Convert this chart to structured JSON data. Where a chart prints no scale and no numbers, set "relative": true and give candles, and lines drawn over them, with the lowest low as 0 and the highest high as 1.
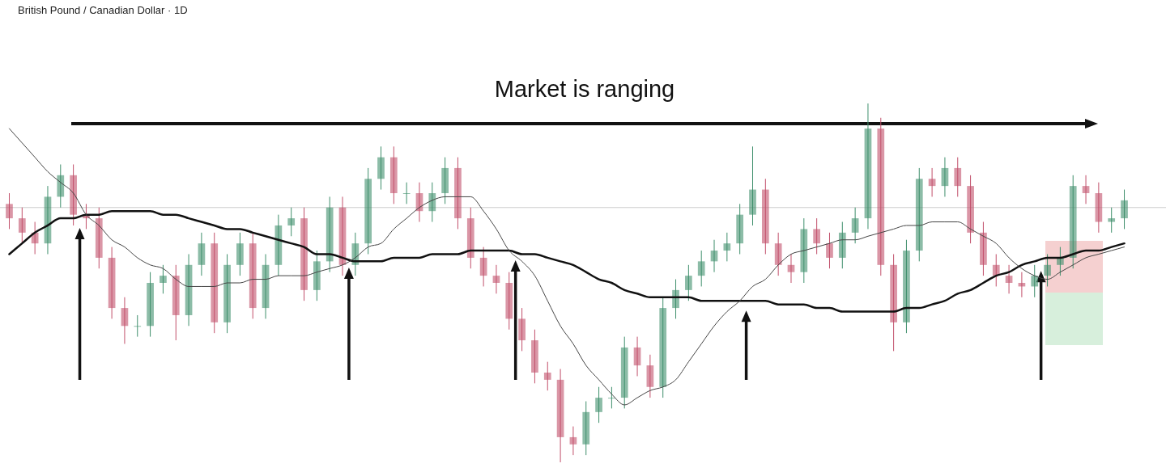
{
  "chart_data": {
    "type": "candlestick",
    "title": "British Pound / Canadian Dollar · 1D",
    "annotations": [
      "Market is ranging"
    ],
    "relative": true,
    "categories": [
      null,
      null,
      null,
      null,
      null,
      null,
      null,
      null,
      null,
      null,
      null,
      null,
      null,
      null,
      null,
      null,
      null,
      null,
      null,
      null,
      null,
      null,
      null,
      null,
      null,
      null,
      null,
      null,
      null,
      null,
      null,
      null,
      null,
      null,
      null,
      null,
      null,
      null,
      null,
      null,
      null,
      null,
      null,
      null,
      null,
      null,
      null,
      null,
      null,
      null,
      null,
      null,
      null,
      null,
      null,
      null,
      null,
      null,
      null,
      null,
      null,
      null,
      null,
      null,
      null,
      null,
      null,
      null,
      null,
      null,
      null,
      null,
      null,
      null,
      null,
      null,
      null,
      null,
      null,
      null,
      null,
      null,
      null,
      null,
      null,
      null,
      null,
      null
    ],
    "ohlc": [
      [
        0.72,
        0.75,
        0.65,
        0.68
      ],
      [
        0.68,
        0.71,
        0.61,
        0.64
      ],
      [
        0.64,
        0.67,
        0.58,
        0.61
      ],
      [
        0.61,
        0.77,
        0.58,
        0.74
      ],
      [
        0.74,
        0.83,
        0.71,
        0.8
      ],
      [
        0.8,
        0.83,
        0.66,
        0.69
      ],
      [
        0.69,
        0.72,
        0.65,
        0.68
      ],
      [
        0.68,
        0.71,
        0.54,
        0.57
      ],
      [
        0.57,
        0.6,
        0.4,
        0.43
      ],
      [
        0.43,
        0.46,
        0.33,
        0.38
      ],
      [
        0.38,
        0.41,
        0.35,
        0.38
      ],
      [
        0.38,
        0.53,
        0.35,
        0.5
      ],
      [
        0.5,
        0.55,
        0.47,
        0.52
      ],
      [
        0.52,
        0.55,
        0.34,
        0.41
      ],
      [
        0.41,
        0.58,
        0.38,
        0.55
      ],
      [
        0.55,
        0.64,
        0.52,
        0.61
      ],
      [
        0.61,
        0.64,
        0.36,
        0.39
      ],
      [
        0.39,
        0.58,
        0.36,
        0.55
      ],
      [
        0.55,
        0.64,
        0.52,
        0.61
      ],
      [
        0.61,
        0.64,
        0.4,
        0.43
      ],
      [
        0.43,
        0.58,
        0.4,
        0.55
      ],
      [
        0.55,
        0.69,
        0.52,
        0.66
      ],
      [
        0.66,
        0.71,
        0.63,
        0.68
      ],
      [
        0.68,
        0.71,
        0.45,
        0.48
      ],
      [
        0.48,
        0.59,
        0.45,
        0.56
      ],
      [
        0.56,
        0.74,
        0.53,
        0.71
      ],
      [
        0.71,
        0.74,
        0.52,
        0.55
      ],
      [
        0.55,
        0.64,
        0.52,
        0.61
      ],
      [
        0.61,
        0.82,
        0.58,
        0.79
      ],
      [
        0.79,
        0.88,
        0.76,
        0.85
      ],
      [
        0.85,
        0.88,
        0.72,
        0.75
      ],
      [
        0.75,
        0.78,
        0.72,
        0.75
      ],
      [
        0.75,
        0.78,
        0.67,
        0.7
      ],
      [
        0.7,
        0.78,
        0.67,
        0.75
      ],
      [
        0.75,
        0.85,
        0.72,
        0.82
      ],
      [
        0.82,
        0.85,
        0.65,
        0.68
      ],
      [
        0.68,
        0.71,
        0.54,
        0.57
      ],
      [
        0.57,
        0.6,
        0.49,
        0.52
      ],
      [
        0.52,
        0.55,
        0.47,
        0.5
      ],
      [
        0.5,
        0.53,
        0.37,
        0.4
      ],
      [
        0.4,
        0.43,
        0.31,
        0.34
      ],
      [
        0.34,
        0.37,
        0.22,
        0.25
      ],
      [
        0.25,
        0.28,
        0.2,
        0.23
      ],
      [
        0.23,
        0.26,
        0.0,
        0.07
      ],
      [
        0.07,
        0.1,
        0.02,
        0.05
      ],
      [
        0.05,
        0.17,
        0.02,
        0.14
      ],
      [
        0.14,
        0.21,
        0.11,
        0.18
      ],
      [
        0.18,
        0.21,
        0.15,
        0.18
      ],
      [
        0.18,
        0.35,
        0.15,
        0.32
      ],
      [
        0.32,
        0.35,
        0.24,
        0.27
      ],
      [
        0.27,
        0.3,
        0.18,
        0.21
      ],
      [
        0.21,
        0.46,
        0.18,
        0.43
      ],
      [
        0.43,
        0.51,
        0.4,
        0.48
      ],
      [
        0.48,
        0.55,
        0.45,
        0.52
      ],
      [
        0.52,
        0.59,
        0.49,
        0.56
      ],
      [
        0.56,
        0.62,
        0.53,
        0.59
      ],
      [
        0.59,
        0.64,
        0.56,
        0.61
      ],
      [
        0.61,
        0.72,
        0.58,
        0.69
      ],
      [
        0.69,
        0.88,
        0.66,
        0.76
      ],
      [
        0.76,
        0.79,
        0.58,
        0.61
      ],
      [
        0.61,
        0.64,
        0.52,
        0.55
      ],
      [
        0.55,
        0.58,
        0.5,
        0.53
      ],
      [
        0.53,
        0.68,
        0.5,
        0.65
      ],
      [
        0.65,
        0.68,
        0.58,
        0.61
      ],
      [
        0.61,
        0.64,
        0.54,
        0.57
      ],
      [
        0.57,
        0.67,
        0.54,
        0.64
      ],
      [
        0.64,
        0.71,
        0.61,
        0.68
      ],
      [
        0.68,
        1.0,
        0.65,
        0.93
      ],
      [
        0.93,
        0.96,
        0.52,
        0.55
      ],
      [
        0.55,
        0.58,
        0.31,
        0.39
      ],
      [
        0.39,
        0.62,
        0.36,
        0.59
      ],
      [
        0.59,
        0.82,
        0.56,
        0.79
      ],
      [
        0.79,
        0.82,
        0.74,
        0.77
      ],
      [
        0.77,
        0.85,
        0.74,
        0.82
      ],
      [
        0.82,
        0.85,
        0.74,
        0.77
      ],
      [
        0.77,
        0.8,
        0.61,
        0.64
      ],
      [
        0.64,
        0.67,
        0.52,
        0.55
      ],
      [
        0.55,
        0.58,
        0.49,
        0.52
      ],
      [
        0.52,
        0.55,
        0.47,
        0.5
      ],
      [
        0.5,
        0.53,
        0.46,
        0.49
      ],
      [
        0.49,
        0.55,
        0.46,
        0.52
      ],
      [
        0.52,
        0.58,
        0.49,
        0.55
      ],
      [
        0.55,
        0.6,
        0.52,
        0.57
      ],
      [
        0.57,
        0.8,
        0.54,
        0.77
      ],
      [
        0.77,
        0.8,
        0.72,
        0.75
      ],
      [
        0.75,
        0.78,
        0.64,
        0.67
      ],
      [
        0.67,
        0.71,
        0.64,
        0.68
      ],
      [
        0.68,
        0.76,
        0.65,
        0.73
      ]
    ],
    "series": [
      {
        "type": "line",
        "color": "#111111",
        "values": [
          0.58,
          0.61,
          0.64,
          0.66,
          0.68,
          0.68,
          0.69,
          0.69,
          0.7,
          0.7,
          0.7,
          0.7,
          0.69,
          0.69,
          0.68,
          0.67,
          0.66,
          0.65,
          0.65,
          0.64,
          0.63,
          0.62,
          0.61,
          0.6,
          0.58,
          0.58,
          0.57,
          0.56,
          0.56,
          0.56,
          0.57,
          0.57,
          0.57,
          0.58,
          0.58,
          0.58,
          0.59,
          0.59,
          0.59,
          0.59,
          0.58,
          0.58,
          0.57,
          0.56,
          0.55,
          0.53,
          0.51,
          0.5,
          0.48,
          0.47,
          0.46,
          0.46,
          0.46,
          0.46,
          0.45,
          0.45,
          0.45,
          0.45,
          0.45,
          0.45,
          0.44,
          0.44,
          0.44,
          0.43,
          0.43,
          0.42,
          0.42,
          0.42,
          0.42,
          0.42,
          0.43,
          0.43,
          0.44,
          0.45,
          0.47,
          0.48,
          0.5,
          0.52,
          0.53,
          0.55,
          0.56,
          0.57,
          0.57,
          0.58,
          0.59,
          0.59,
          0.6,
          0.61
        ]
      },
      {
        "type": "line",
        "color": "#444444",
        "values": [
          0.93,
          0.89,
          0.85,
          0.81,
          0.78,
          0.75,
          0.69,
          0.66,
          0.62,
          0.6,
          0.57,
          0.55,
          0.54,
          0.51,
          0.49,
          0.49,
          0.49,
          0.5,
          0.5,
          0.51,
          0.51,
          0.52,
          0.52,
          0.52,
          0.53,
          0.54,
          0.55,
          0.57,
          0.6,
          0.61,
          0.65,
          0.68,
          0.71,
          0.73,
          0.74,
          0.74,
          0.74,
          0.7,
          0.65,
          0.59,
          0.56,
          0.52,
          0.45,
          0.38,
          0.33,
          0.27,
          0.23,
          0.19,
          0.16,
          0.18,
          0.2,
          0.21,
          0.23,
          0.28,
          0.33,
          0.38,
          0.42,
          0.45,
          0.49,
          0.51,
          0.55,
          0.58,
          0.59,
          0.6,
          0.61,
          0.62,
          0.62,
          0.63,
          0.64,
          0.65,
          0.66,
          0.66,
          0.67,
          0.67,
          0.67,
          0.65,
          0.63,
          0.61,
          0.57,
          0.54,
          0.52,
          0.51,
          0.53,
          0.55,
          0.57,
          0.58,
          0.59,
          0.6
        ]
      }
    ],
    "ref_lines": [
      {
        "axis": "y",
        "value": 0.71,
        "color": "#cccccc"
      }
    ]
  }
}
